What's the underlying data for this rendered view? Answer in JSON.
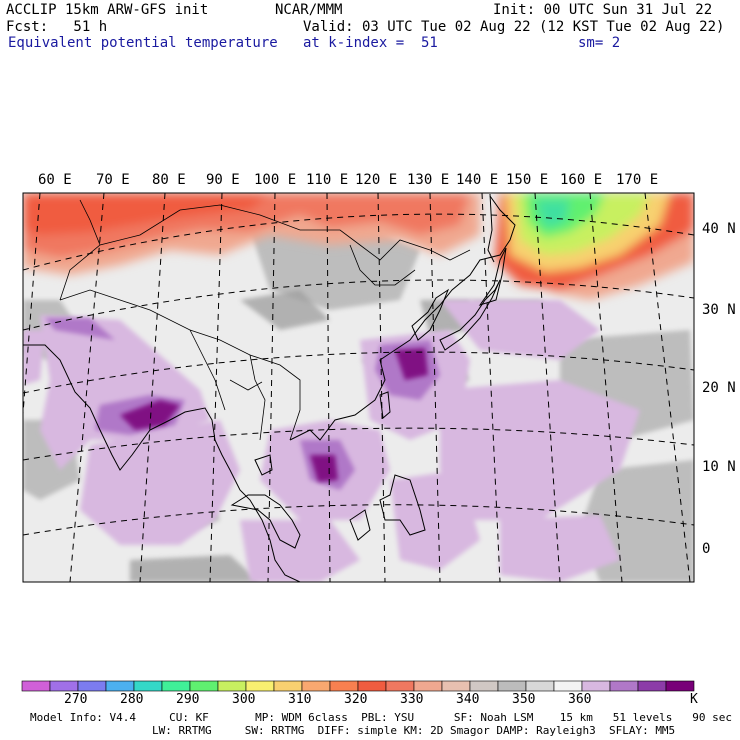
{
  "header": {
    "left1": "ACCLIP 15km ARW-GFS init",
    "center1": "NCAR/MMM",
    "right1": "Init: 00 UTC Sun 31 Jul 22",
    "left2": "Fcst:   51 h",
    "right2": "Valid: 03 UTC Tue 02 Aug 22 (12 KST Tue 02 Aug 22)",
    "left3": "Equivalent potential temperature",
    "center3": "at k-index =  51",
    "right3": "sm= 2"
  },
  "longitude_labels": [
    "60 E",
    "70 E",
    "80 E",
    "90 E",
    "100 E",
    "110 E",
    "120 E",
    "130 E",
    "140 E",
    "150 E",
    "160 E",
    "170 E"
  ],
  "latitude_labels": [
    "40 N",
    "30 N",
    "20 N",
    "10 N",
    "0"
  ],
  "colorbar": {
    "unit": "K",
    "ticks": [
      "270",
      "280",
      "290",
      "300",
      "310",
      "320",
      "330",
      "340",
      "350",
      "360"
    ],
    "colors": [
      "#d060d8",
      "#a070e8",
      "#7c7cf0",
      "#4cb0f0",
      "#34d8c8",
      "#40f098",
      "#60f070",
      "#c8f060",
      "#f8f070",
      "#f8d070",
      "#f8a870",
      "#f88050",
      "#f05c40",
      "#f07860",
      "#f0a890",
      "#e8c0b0",
      "#d0c8c4",
      "#bcbcbc",
      "#d8d8d8",
      "#f4f4f4",
      "#d8b8e0",
      "#b078c8",
      "#8c3ca8",
      "#780078"
    ]
  },
  "footer": {
    "line1": "Model Info: V4.4     CU: KF       MP: WDM 6class  PBL: YSU      SF: Noah LSM    15 km   51 levels   90 sec",
    "line2": "LW: RRTMG     SW: RRTMG  DIFF: simple KM: 2D Smagor DAMP: Rayleigh3  SFLAY: MM5"
  }
}
